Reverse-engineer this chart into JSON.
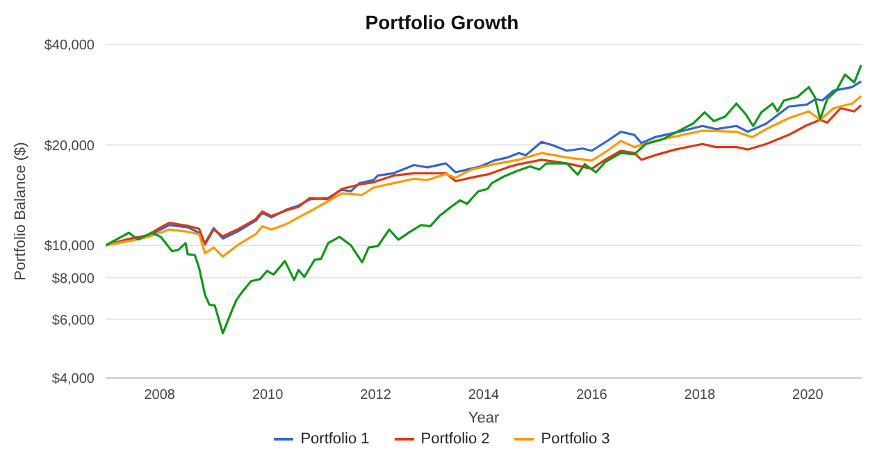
{
  "chart_data": {
    "type": "line",
    "title": "Portfolio Growth",
    "xlabel": "Year",
    "ylabel": "Portfolio Balance ($)",
    "log": "y",
    "grid": "y",
    "legend": "bottom",
    "marker": "none",
    "line_style": "solid",
    "xlim": [
      2007,
      2021
    ],
    "xticks": [
      2008,
      2010,
      2012,
      2014,
      2016,
      2018,
      2020
    ],
    "ylim": [
      4000,
      40000
    ],
    "yticks": [
      {
        "value": 4000,
        "label": "$4,000"
      },
      {
        "value": 6000,
        "label": "$6,000"
      },
      {
        "value": 8000,
        "label": "$8,000"
      },
      {
        "value": 10000,
        "label": "$10,000"
      },
      {
        "value": 20000,
        "label": "$20,000"
      },
      {
        "value": 40000,
        "label": "$40,000"
      }
    ],
    "series": [
      {
        "name": "Portfolio 1",
        "color": "#3366cc",
        "x": [
          2007.0,
          2007.47,
          2007.77,
          2008.02,
          2008.18,
          2008.52,
          2008.73,
          2008.84,
          2009.0,
          2009.17,
          2009.44,
          2009.78,
          2009.9,
          2010.07,
          2010.36,
          2010.57,
          2010.78,
          2011.12,
          2011.37,
          2011.54,
          2011.7,
          2011.96,
          2012.04,
          2012.33,
          2012.71,
          2012.96,
          2013.3,
          2013.48,
          2013.69,
          2013.94,
          2014.19,
          2014.44,
          2014.65,
          2014.78,
          2015.07,
          2015.28,
          2015.54,
          2015.83,
          2016.0,
          2016.29,
          2016.54,
          2016.79,
          2016.92,
          2017.17,
          2017.55,
          2018.05,
          2018.3,
          2018.68,
          2018.89,
          2019.23,
          2019.65,
          2019.98,
          2020.15,
          2020.27,
          2020.48,
          2020.82,
          2020.99
        ],
        "values": [
          10000,
          10470,
          10640,
          11150,
          11500,
          11320,
          10900,
          10150,
          11250,
          10480,
          10990,
          11860,
          12510,
          12120,
          12820,
          13150,
          13730,
          13860,
          14660,
          14520,
          15350,
          15690,
          16180,
          16440,
          17400,
          17120,
          17600,
          16550,
          16860,
          17230,
          17940,
          18330,
          18910,
          18620,
          20420,
          19950,
          19200,
          19500,
          19200,
          20560,
          21900,
          21430,
          20250,
          21090,
          21760,
          22790,
          22300,
          22790,
          21900,
          23160,
          26070,
          26400,
          27450,
          27180,
          29100,
          29800,
          31000
        ]
      },
      {
        "name": "Portfolio 2",
        "color": "#dc3912",
        "x": [
          2007.0,
          2007.47,
          2007.77,
          2008.02,
          2008.18,
          2008.52,
          2008.73,
          2008.84,
          2009.0,
          2009.17,
          2009.44,
          2009.78,
          2009.9,
          2010.07,
          2010.36,
          2010.57,
          2010.78,
          2011.12,
          2011.37,
          2011.7,
          2011.96,
          2012.33,
          2012.71,
          2013.3,
          2013.48,
          2013.77,
          2014.11,
          2014.44,
          2014.65,
          2015.07,
          2015.54,
          2016.0,
          2016.25,
          2016.54,
          2016.79,
          2016.92,
          2017.17,
          2017.55,
          2018.05,
          2018.3,
          2018.68,
          2018.89,
          2019.23,
          2019.65,
          2019.98,
          2020.23,
          2020.36,
          2020.61,
          2020.86,
          2020.99
        ],
        "values": [
          10000,
          10470,
          10700,
          11320,
          11680,
          11430,
          11210,
          10060,
          11150,
          10640,
          11150,
          11980,
          12630,
          12240,
          12740,
          13030,
          13860,
          13730,
          14750,
          15220,
          15450,
          16180,
          16440,
          16440,
          15570,
          15950,
          16360,
          17120,
          17500,
          18050,
          17600,
          16960,
          18050,
          19200,
          18910,
          18050,
          18620,
          19370,
          20120,
          19700,
          19700,
          19370,
          20120,
          21430,
          22900,
          23770,
          23330,
          25760,
          25200,
          26300
        ]
      },
      {
        "name": "Portfolio 3",
        "color": "#ff9900",
        "x": [
          2007.0,
          2007.47,
          2007.77,
          2008.02,
          2008.18,
          2008.52,
          2008.73,
          2008.84,
          2009.0,
          2009.17,
          2009.44,
          2009.78,
          2009.9,
          2010.07,
          2010.36,
          2010.57,
          2010.78,
          2011.12,
          2011.37,
          2011.75,
          2011.96,
          2012.33,
          2012.71,
          2012.96,
          2013.3,
          2013.48,
          2013.77,
          2014.19,
          2014.65,
          2015.07,
          2015.54,
          2016.0,
          2016.29,
          2016.54,
          2016.79,
          2017.17,
          2017.55,
          2018.05,
          2018.68,
          2018.97,
          2019.23,
          2019.65,
          2020.02,
          2020.23,
          2020.48,
          2020.82,
          2020.99
        ],
        "values": [
          10000,
          10320,
          10580,
          10910,
          11150,
          10980,
          10800,
          9460,
          9850,
          9250,
          10000,
          10800,
          11390,
          11150,
          11600,
          12120,
          12630,
          13560,
          14300,
          14160,
          14890,
          15350,
          15830,
          15690,
          16360,
          15950,
          16860,
          17500,
          18050,
          18910,
          18330,
          17940,
          19200,
          20560,
          19700,
          20560,
          21200,
          22060,
          21900,
          21090,
          22300,
          24050,
          25200,
          23770,
          25760,
          26600,
          28000
        ]
      },
      {
        "color": "#109618",
        "x": [
          2007.0,
          2007.43,
          2007.6,
          2007.85,
          2008.02,
          2008.23,
          2008.35,
          2008.48,
          2008.52,
          2008.65,
          2008.73,
          2008.84,
          2008.92,
          2009.02,
          2009.17,
          2009.32,
          2009.42,
          2009.52,
          2009.69,
          2009.86,
          2009.99,
          2010.11,
          2010.32,
          2010.49,
          2010.57,
          2010.68,
          2010.87,
          2010.99,
          2011.12,
          2011.33,
          2011.54,
          2011.75,
          2011.87,
          2012.04,
          2012.25,
          2012.42,
          2012.63,
          2012.84,
          2013.01,
          2013.18,
          2013.39,
          2013.56,
          2013.69,
          2013.9,
          2014.07,
          2014.15,
          2014.36,
          2014.61,
          2014.86,
          2015.03,
          2015.16,
          2015.54,
          2015.74,
          2015.87,
          2016.08,
          2016.25,
          2016.54,
          2016.79,
          2017.0,
          2017.3,
          2017.55,
          2017.88,
          2018.09,
          2018.26,
          2018.47,
          2018.68,
          2018.85,
          2018.99,
          2019.14,
          2019.35,
          2019.44,
          2019.56,
          2019.81,
          2020.02,
          2020.13,
          2020.23,
          2020.36,
          2020.53,
          2020.69,
          2020.86,
          2020.99
        ],
        "values": [
          10000,
          10900,
          10400,
          10900,
          10600,
          9600,
          9700,
          10150,
          9400,
          9350,
          8560,
          7100,
          6640,
          6600,
          5450,
          6270,
          6850,
          7220,
          7800,
          7920,
          8380,
          8170,
          8970,
          7870,
          8430,
          8040,
          9050,
          9110,
          10150,
          10600,
          10000,
          8890,
          9850,
          9940,
          11150,
          10400,
          10960,
          11500,
          11400,
          12240,
          13020,
          13640,
          13310,
          14520,
          14750,
          15350,
          16040,
          16690,
          17230,
          16860,
          17600,
          17600,
          16290,
          17500,
          16550,
          17770,
          18910,
          18750,
          20120,
          20750,
          21760,
          23200,
          25040,
          23570,
          24310,
          26600,
          24730,
          22790,
          25040,
          26600,
          25200,
          27180,
          27850,
          29800,
          27850,
          23900,
          27450,
          29100,
          32500,
          30750,
          34700
        ]
      }
    ]
  }
}
